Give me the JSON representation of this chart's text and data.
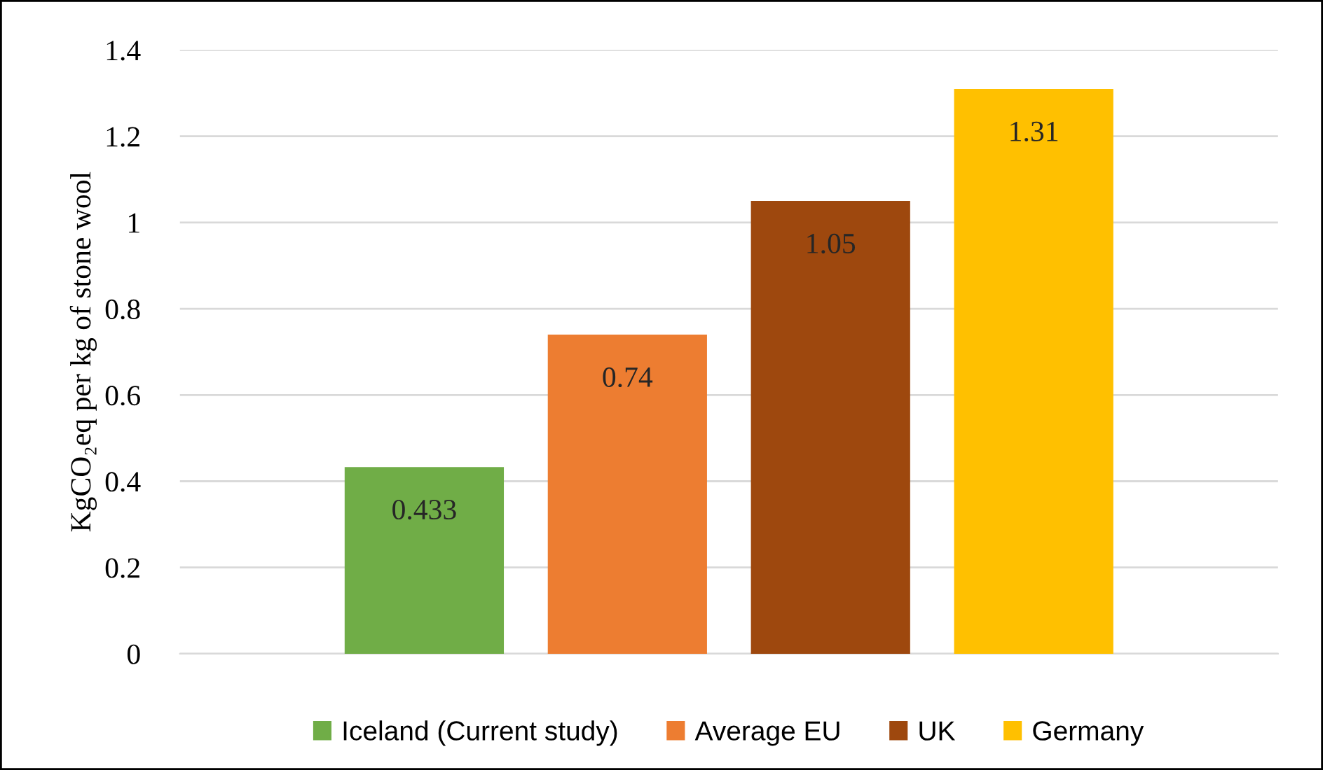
{
  "chart_data": {
    "type": "bar",
    "ylabel": "KgCO₂eq per kg of stone wool",
    "categories": [
      null
    ],
    "series": [
      {
        "name": "Iceland (Current study)",
        "color": "#70ad47",
        "values": [
          0.433
        ]
      },
      {
        "name": "Average EU",
        "color": "#ed7d31",
        "values": [
          0.74
        ]
      },
      {
        "name": "UK",
        "color": "#9e480e",
        "values": [
          1.05
        ]
      },
      {
        "name": "Germany",
        "color": "#ffc000",
        "values": [
          1.31
        ]
      }
    ],
    "ylim": [
      0,
      1.4
    ],
    "yticks": [
      0,
      0.2,
      0.4,
      0.6,
      0.8,
      1,
      1.2,
      1.4
    ],
    "grid": "y",
    "legend": "bottom",
    "data_labels": true
  }
}
